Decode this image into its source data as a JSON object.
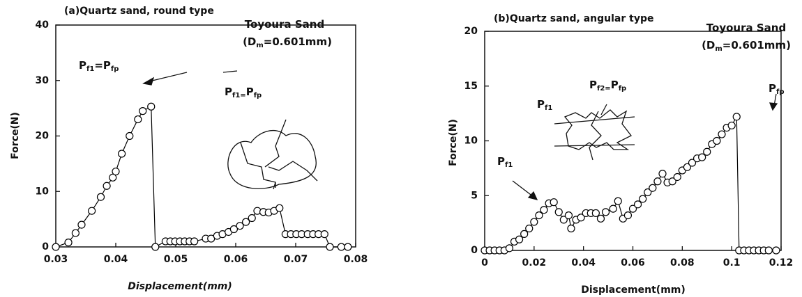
{
  "chart_data": [
    {
      "type": "line",
      "title": "(a)Quartz sand, round type",
      "x_label": "Displacement(mm)",
      "y_label": "Force(N)",
      "xlim": [
        0.03,
        0.08
      ],
      "xticks": [
        0.03,
        0.04,
        0.05,
        0.06,
        0.07,
        0.08
      ],
      "ylim": [
        0,
        40
      ],
      "yticks": [
        0,
        10,
        20,
        30,
        40
      ],
      "series": [
        {
          "color": "#000000",
          "x": [
            0.03,
            0.0321,
            0.0333,
            0.0343,
            0.036,
            0.0375,
            0.0385,
            0.0395,
            0.04,
            0.041,
            0.0423,
            0.0437,
            0.0445,
            0.0459,
            0.0466,
            0.0483,
            0.0491,
            0.0499,
            0.0507,
            0.0515,
            0.0523,
            0.0531,
            0.055,
            0.0559,
            0.0569,
            0.0578,
            0.0588,
            0.0597,
            0.0607,
            0.0617,
            0.0627,
            0.0636,
            0.0646,
            0.0655,
            0.0664,
            0.0673,
            0.0683,
            0.0692,
            0.0701,
            0.071,
            0.072,
            0.0729,
            0.0738,
            0.0748,
            0.0757,
            0.0776,
            0.0787
          ],
          "values": [
            0,
            0.8,
            2.5,
            4,
            6.5,
            9,
            11,
            12.5,
            13.6,
            16.8,
            20,
            23,
            24.5,
            25.3,
            0,
            1,
            1,
            1,
            1,
            1,
            1,
            1,
            1.5,
            1.5,
            2,
            2.3,
            2.7,
            3.2,
            3.8,
            4.5,
            5.2,
            6.5,
            6.3,
            6.2,
            6.5,
            7,
            2.3,
            2.3,
            2.3,
            2.3,
            2.3,
            2.3,
            2.3,
            2.3,
            0,
            0,
            0
          ]
        }
      ],
      "annotations": [
        {
          "parts": [
            "Toyoura Sand"
          ]
        },
        {
          "parts": [
            "(D",
            "m",
            "=0.601mm)"
          ]
        },
        {
          "parts": [
            "P",
            "f1",
            "=P",
            "fp"
          ]
        },
        {
          "parts": [
            "P",
            "f1=",
            "P",
            "fp"
          ]
        }
      ]
    },
    {
      "type": "line",
      "title": "(b)Quartz sand, angular type",
      "x_label": "Displacement(mm)",
      "y_label": "Force(N)",
      "xlim": [
        0,
        0.12
      ],
      "xticks": [
        0,
        0.02,
        0.04,
        0.06,
        0.08,
        0.1,
        0.12
      ],
      "ylim": [
        0,
        20
      ],
      "yticks": [
        0,
        5,
        10,
        15,
        20
      ],
      "series": [
        {
          "color": "#000000",
          "x": [
            0,
            0.002,
            0.004,
            0.006,
            0.008,
            0.01,
            0.012,
            0.014,
            0.016,
            0.018,
            0.02,
            0.022,
            0.024,
            0.026,
            0.028,
            0.03,
            0.032,
            0.034,
            0.035,
            0.037,
            0.039,
            0.041,
            0.043,
            0.045,
            0.047,
            0.049,
            0.052,
            0.054,
            0.056,
            0.058,
            0.06,
            0.062,
            0.064,
            0.066,
            0.068,
            0.07,
            0.072,
            0.074,
            0.076,
            0.078,
            0.08,
            0.082,
            0.084,
            0.086,
            0.088,
            0.09,
            0.092,
            0.094,
            0.096,
            0.098,
            0.1,
            0.102,
            0.103,
            0.105,
            0.107,
            0.109,
            0.111,
            0.113,
            0.115,
            0.118
          ],
          "values": [
            0,
            0,
            0,
            0,
            0,
            0.2,
            0.8,
            1,
            1.5,
            2,
            2.6,
            3.2,
            3.7,
            4.3,
            4.4,
            3.5,
            2.8,
            3.2,
            2,
            2.8,
            3,
            3.4,
            3.4,
            3.4,
            2.9,
            3.5,
            3.8,
            4.5,
            2.9,
            3.2,
            3.8,
            4.2,
            4.7,
            5.3,
            5.7,
            6.3,
            7,
            6.2,
            6.3,
            6.7,
            7.3,
            7.6,
            8,
            8.4,
            8.5,
            9,
            9.7,
            10,
            10.6,
            11.2,
            11.4,
            12.2,
            0,
            0,
            0,
            0,
            0,
            0,
            0,
            0
          ]
        }
      ],
      "annotations": [
        {
          "parts": [
            "Toyoura Sand"
          ]
        },
        {
          "parts": [
            "(D",
            "m",
            "=0.601mm)"
          ]
        },
        {
          "parts": [
            "P",
            "fp"
          ]
        },
        {
          "parts": [
            "P",
            "f2=",
            "P",
            "fp"
          ]
        },
        {
          "parts": [
            "P",
            "f1"
          ]
        },
        {
          "parts": [
            "P",
            "f1"
          ]
        }
      ]
    }
  ]
}
